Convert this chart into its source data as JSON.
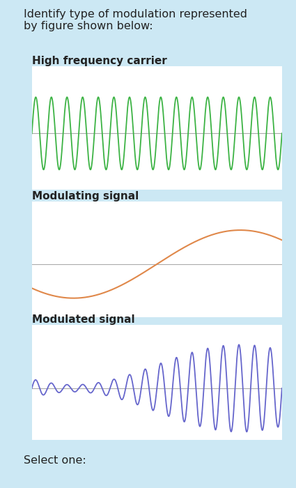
{
  "title_text": "Identify type of modulation represented\nby figure shown below:",
  "label1": "High frequency carrier",
  "label2": "Modulating signal",
  "label3": "Modulated signal",
  "select_text": "Select one:",
  "carrier_color": "#3cb344",
  "modulating_color": "#e0884a",
  "modulated_color": "#6666cc",
  "axis_line_color": "#aaaaaa",
  "bg_color": "#cce8f4",
  "bg_plot_color": "#ffffff",
  "text_color": "#222222",
  "figsize": [
    4.25,
    7.0
  ],
  "dpi": 100,
  "carrier_freq": 16,
  "modulating_freq": 0.75,
  "kf": 5.5,
  "title_fontsize": 11.5,
  "label_fontsize": 11,
  "select_fontsize": 11.5
}
